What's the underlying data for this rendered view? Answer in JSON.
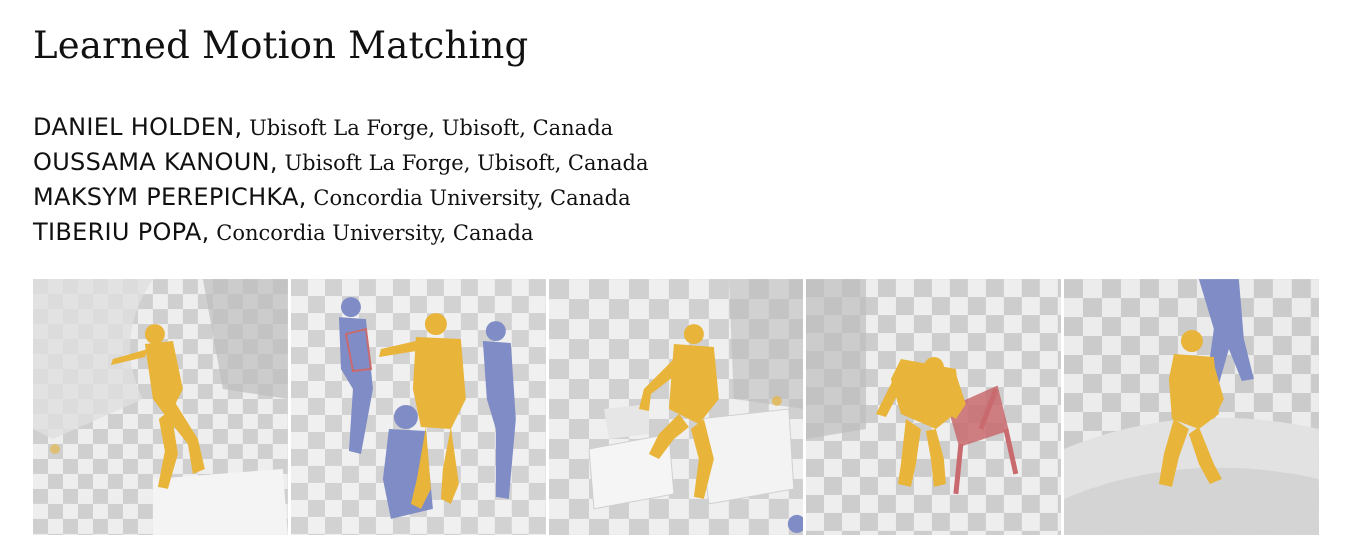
{
  "paper": {
    "title": "Learned Motion Matching",
    "authors": [
      {
        "name": "DANIEL HOLDEN,",
        "affiliation": " Ubisoft La Forge, Ubisoft, Canada"
      },
      {
        "name": "OUSSAMA KANOUN,",
        "affiliation": " Ubisoft La Forge, Ubisoft, Canada"
      },
      {
        "name": "MAKSYM PEREPICHKA,",
        "affiliation": " Concordia University, Canada"
      },
      {
        "name": "TIBERIU POPA,",
        "affiliation": " Concordia University, Canada"
      }
    ]
  },
  "figure": {
    "colors": {
      "character_primary": "#e8b43a",
      "character_secondary": "#7f8cc6",
      "chair": "#c96a6e",
      "environment_light": "#f1f1f1",
      "environment_dark": "#c9c9c9"
    },
    "panels": [
      {
        "scene": "climbing-wall-icon"
      },
      {
        "scene": "crowd-interaction-icon"
      },
      {
        "scene": "stepping-over-blocks-icon"
      },
      {
        "scene": "sitting-on-chair-icon"
      },
      {
        "scene": "walking-over-pipes-icon"
      }
    ]
  }
}
